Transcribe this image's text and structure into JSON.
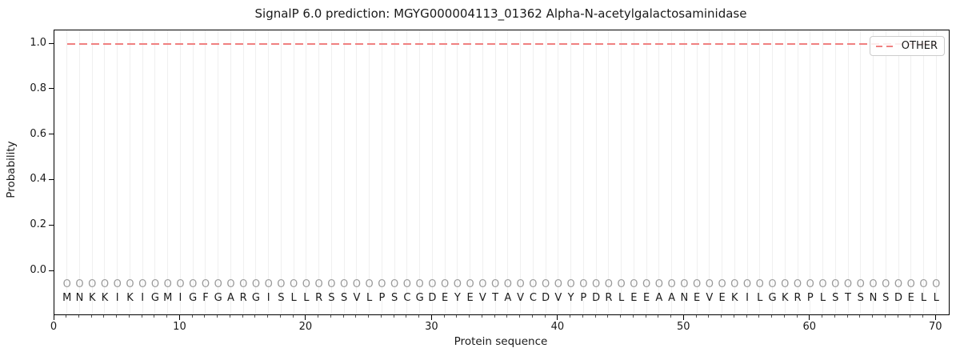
{
  "chart_data": {
    "type": "line",
    "title": "SignalP 6.0 prediction: MGYG000004113_01362 Alpha-N-acetylgalactosaminidase",
    "xlabel": "Protein sequence",
    "ylabel": "Probability",
    "xlim": [
      0,
      71
    ],
    "ylim": [
      -0.19,
      1.06
    ],
    "x_ticks": [
      0,
      10,
      20,
      30,
      40,
      50,
      60,
      70
    ],
    "y_tick_labels": [
      "0.0",
      "0.2",
      "0.4",
      "0.6",
      "0.8",
      "1.0"
    ],
    "grid": "light vertical gridline at every residue position 1-70, no horizontal gridlines",
    "legend": {
      "position": "upper right",
      "entries": [
        {
          "label": "OTHER",
          "color": "#f08080",
          "linestyle": "dashed"
        }
      ]
    },
    "series": [
      {
        "name": "OTHER",
        "color": "#f08080",
        "linestyle": "dashed",
        "x_start": 1,
        "x_end": 70,
        "y_constant": 1.0,
        "note": "OTHER (no signal peptide) probability equals 1.0 at every residue from 1 to 70"
      }
    ],
    "sequence": "MNKKIKIGMIGFGARGISLLRSSVLPSCGDEYEVTAVCDVYPDRLEEAANEVEKILGKRPLSTSNSDELL",
    "per_residue_predicted_label": "OOOOOOOOOOOOOOOOOOOOOOOOOOOOOOOOOOOOOOOOOOOOOOOOOOOOOOOOOOOOOOOOOOOOOO",
    "colors": {
      "other_line": "#f08080",
      "grid": "#f0f0f0",
      "predicted_label_text": "#9a9a9a",
      "residue_text": "#1a1a1a",
      "spine": "#000000",
      "legend_border": "#cccccc"
    }
  }
}
